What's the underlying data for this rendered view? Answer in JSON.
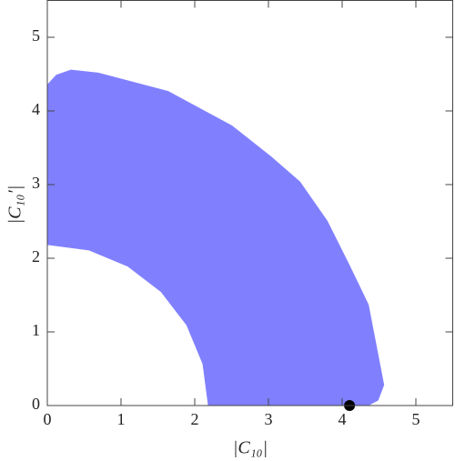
{
  "chart_data": {
    "type": "region",
    "x_label": "|C₁₀|",
    "y_label": "|C₁₀′|",
    "xlim": [
      0,
      5.5
    ],
    "ylim": [
      0,
      5.5
    ],
    "xticks": [
      0,
      1,
      2,
      3,
      4,
      5
    ],
    "yticks": [
      0,
      1,
      2,
      3,
      4,
      5
    ],
    "series": [
      {
        "color": "#8080ff",
        "x": [
          0,
          0.12,
          0.32,
          0.69,
          1.64,
          2.51,
          3.04,
          3.43,
          3.8,
          4.09,
          4.36,
          4.57,
          4.49,
          4.36,
          2.18,
          2.106,
          1.888,
          1.541,
          1.09,
          0.564,
          0
        ],
        "y": [
          4.36,
          4.49,
          4.56,
          4.52,
          4.27,
          3.8,
          3.38,
          3.04,
          2.51,
          1.93,
          1.37,
          0.28,
          0.07,
          0,
          0,
          0.564,
          1.09,
          1.541,
          1.888,
          2.106,
          2.18
        ]
      },
      {
        "type": "scatter",
        "color": "#000000",
        "x": [
          4.1
        ],
        "y": [
          0
        ]
      }
    ]
  }
}
